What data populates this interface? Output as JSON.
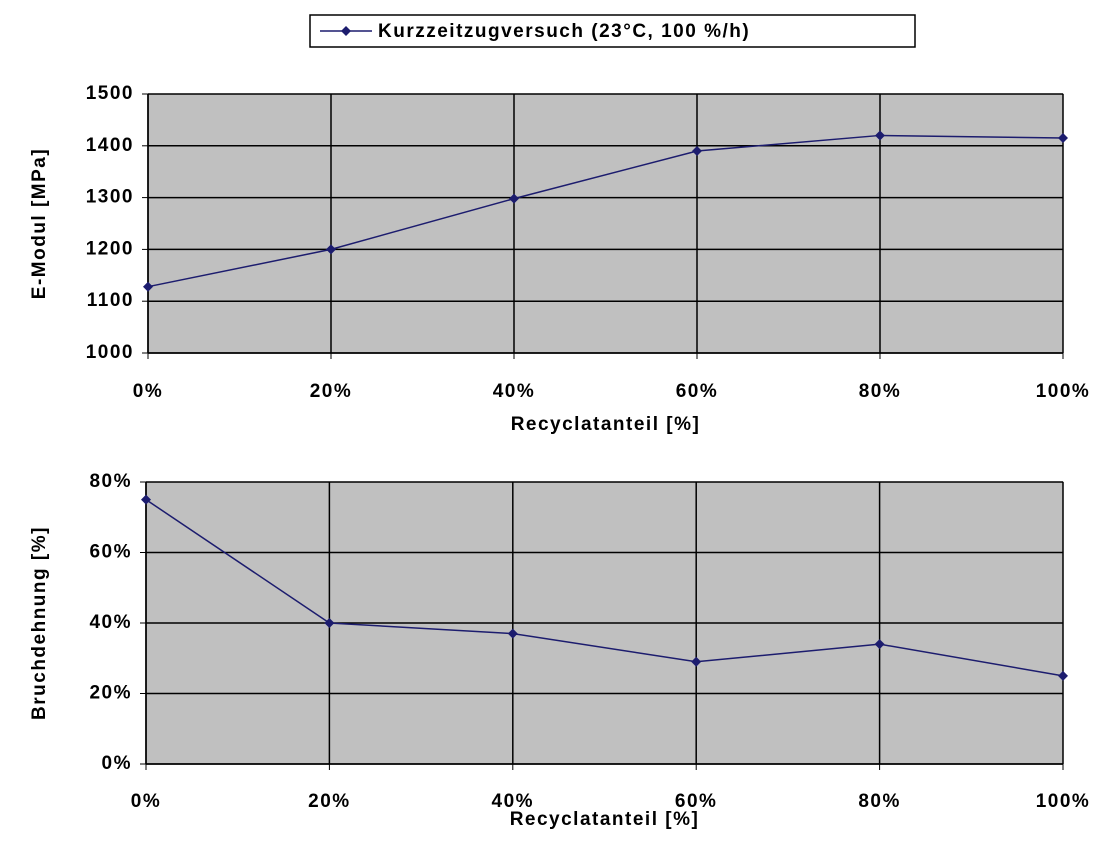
{
  "chart_data": [
    {
      "type": "line",
      "x": [
        0,
        20,
        40,
        60,
        80,
        100
      ],
      "xlim": [
        0,
        100
      ],
      "xticks": [
        {
          "value": 0,
          "label": "0%"
        },
        {
          "value": 20,
          "label": "20%"
        },
        {
          "value": 40,
          "label": "40%"
        },
        {
          "value": 60,
          "label": "60%"
        },
        {
          "value": 80,
          "label": "80%"
        },
        {
          "value": 100,
          "label": "100%"
        }
      ],
      "ylim": [
        1000,
        1500
      ],
      "yticks": [
        1000,
        1100,
        1200,
        1300,
        1400,
        1500
      ],
      "x_label": "Recyclatanteil [%]",
      "y_label": "E-Modul [MPa]",
      "grid": true,
      "legend": "top",
      "series": [
        {
          "name": "Kurzzeitzugversuch (23°C, 100 %/h)",
          "color": "#1c1c6e",
          "values": [
            1128,
            1200,
            1298,
            1390,
            1420,
            1415
          ]
        }
      ]
    },
    {
      "type": "line",
      "x": [
        0,
        20,
        40,
        60,
        80,
        100
      ],
      "xlim": [
        0,
        100
      ],
      "xticks": [
        {
          "value": 0,
          "label": "0%"
        },
        {
          "value": 20,
          "label": "20%"
        },
        {
          "value": 40,
          "label": "40%"
        },
        {
          "value": 60,
          "label": "60%"
        },
        {
          "value": 80,
          "label": "80%"
        },
        {
          "value": 100,
          "label": "100%"
        }
      ],
      "ylim": [
        0,
        80
      ],
      "yticks": [
        {
          "value": 0,
          "label": "0%"
        },
        {
          "value": 20,
          "label": "20%"
        },
        {
          "value": 40,
          "label": "40%"
        },
        {
          "value": 60,
          "label": "60%"
        },
        {
          "value": 80,
          "label": "80%"
        }
      ],
      "x_label": "Recyclatanteil [%]",
      "y_label": "Bruchdehnung [%]",
      "grid": true,
      "series": [
        {
          "color": "#1c1c6e",
          "values": [
            75,
            40,
            37,
            29,
            34,
            25
          ]
        }
      ]
    }
  ]
}
